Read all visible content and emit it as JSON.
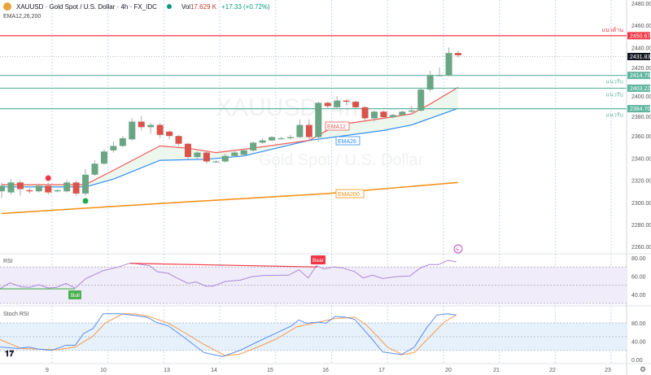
{
  "header": {
    "symbol": "XAUUSD · Gold Spot / U.S. Dollar · 4h · FX_IDC",
    "vol_label": "Vol",
    "vol": "17.629 K",
    "change": "+17.33 (+0.72%)",
    "indicators": "EMA12,26,200"
  },
  "watermark": {
    "line1": "XAUUSD, 4h",
    "line2": "Gold Spot / U.S. Dollar"
  },
  "colors": {
    "up": "#6aa584",
    "down": "#d9534a",
    "ema12": "#f05a5a",
    "ema26": "#2f8cf0",
    "ema200": "#f7931a",
    "resistance": "#f23645",
    "support": "#5fb5a0",
    "rsi": "#a989d8",
    "stochK": "#5b8def",
    "stochD": "#f79a4a"
  },
  "price_axis": {
    "ticks": [
      "2480.00",
      "2460.00",
      "2440.00",
      "2420.00",
      "2400.00",
      "2380.00",
      "2360.00",
      "2340.00",
      "2320.00",
      "2300.00",
      "2280.00",
      "2260.00"
    ],
    "tick_values": [
      2480,
      2460,
      2440,
      2420,
      2400,
      2380,
      2360,
      2340,
      2320,
      2300,
      2280,
      2260
    ]
  },
  "levels": [
    {
      "label": "แนวต้าน",
      "value": 2450.67,
      "price": "2450.67",
      "type": "resistance"
    },
    {
      "label": "แนวรับ",
      "value": 2414.79,
      "price": "2414.79",
      "type": "support"
    },
    {
      "label": "แนวรับ",
      "value": 2403.22,
      "price": "2403.22",
      "type": "support"
    },
    {
      "label": "แนวรับ",
      "value": 2384.7,
      "price": "2384.70",
      "type": "support"
    }
  ],
  "current_price": {
    "value": 2431.83,
    "label": "2431.83"
  },
  "ema_labels": {
    "ema12": "EMA12",
    "ema26": "EMA26",
    "ema200": "EMA200"
  },
  "time_axis": [
    "9",
    "10",
    "13",
    "14",
    "15",
    "16",
    "17",
    "20",
    "21",
    "22",
    "23"
  ],
  "candles": [
    [
      2310,
      2315,
      2318,
      2304
    ],
    [
      2309,
      2318,
      2321,
      2307
    ],
    [
      2318,
      2312,
      2320,
      2306
    ],
    [
      2311,
      2310,
      2313,
      2308
    ],
    [
      2310,
      2315,
      2317,
      2309
    ],
    [
      2315,
      2309,
      2318,
      2307
    ],
    [
      2310,
      2311,
      2312,
      2309
    ],
    [
      2310,
      2318,
      2320,
      2309
    ],
    [
      2318,
      2308,
      2320,
      2306
    ],
    [
      2308,
      2325,
      2330,
      2306
    ],
    [
      2325,
      2335,
      2338,
      2324
    ],
    [
      2335,
      2346,
      2348,
      2334
    ],
    [
      2347,
      2351,
      2355,
      2345
    ],
    [
      2351,
      2358,
      2360,
      2350
    ],
    [
      2357,
      2373,
      2376,
      2356
    ],
    [
      2373,
      2368,
      2378,
      2365
    ],
    [
      2368,
      2370,
      2372,
      2362
    ],
    [
      2370,
      2361,
      2372,
      2358
    ],
    [
      2364,
      2360,
      2365,
      2357
    ],
    [
      2360,
      2353,
      2361,
      2351
    ],
    [
      2353,
      2341,
      2354,
      2339
    ],
    [
      2341,
      2345,
      2346,
      2339
    ],
    [
      2345,
      2337,
      2346,
      2335
    ],
    [
      2337,
      2337,
      2338,
      2336
    ],
    [
      2337,
      2342,
      2344,
      2336
    ],
    [
      2342,
      2345,
      2347,
      2341
    ],
    [
      2343,
      2347,
      2348,
      2342
    ],
    [
      2347,
      2354,
      2355,
      2346
    ],
    [
      2354,
      2356,
      2358,
      2353
    ],
    [
      2356,
      2359,
      2360,
      2355
    ],
    [
      2358,
      2358,
      2359,
      2357
    ],
    [
      2358,
      2359,
      2361,
      2357
    ],
    [
      2359,
      2370,
      2375,
      2358
    ],
    [
      2370,
      2359,
      2375,
      2355
    ],
    [
      2359,
      2390,
      2391,
      2355
    ],
    [
      2390,
      2387,
      2391,
      2385
    ],
    [
      2386,
      2392,
      2396,
      2385
    ],
    [
      2392,
      2391,
      2393,
      2388
    ],
    [
      2391,
      2386,
      2392,
      2385
    ],
    [
      2386,
      2376,
      2387,
      2374
    ],
    [
      2376,
      2382,
      2383,
      2373
    ],
    [
      2382,
      2377,
      2383,
      2376
    ],
    [
      2377,
      2379,
      2380,
      2376
    ],
    [
      2379,
      2382,
      2383,
      2378
    ],
    [
      2382,
      2383,
      2387,
      2381
    ],
    [
      2383,
      2402,
      2403,
      2382
    ],
    [
      2402,
      2415,
      2419,
      2400
    ],
    [
      2415,
      2415,
      2422,
      2414
    ],
    [
      2415,
      2435,
      2440,
      2414
    ],
    [
      2435,
      2433,
      2437,
      2431
    ]
  ],
  "ema12": [
    [
      0,
      2316
    ],
    [
      9,
      2316
    ],
    [
      12,
      2329
    ],
    [
      17,
      2351
    ],
    [
      20,
      2349
    ],
    [
      23,
      2345
    ],
    [
      26,
      2348
    ],
    [
      33,
      2356
    ],
    [
      36,
      2370
    ],
    [
      41,
      2376
    ],
    [
      44,
      2380
    ],
    [
      46,
      2389
    ],
    [
      49,
      2404
    ]
  ],
  "ema26": [
    [
      0,
      2314
    ],
    [
      9,
      2314
    ],
    [
      12,
      2321
    ],
    [
      17,
      2338
    ],
    [
      22,
      2339
    ],
    [
      26,
      2342
    ],
    [
      33,
      2356
    ],
    [
      41,
      2365
    ],
    [
      44,
      2370
    ],
    [
      49,
      2385
    ]
  ],
  "ema200": [
    [
      0,
      2290
    ],
    [
      17,
      2299
    ],
    [
      35,
      2308
    ],
    [
      49,
      2318
    ]
  ],
  "signals": {
    "sell_dot_bar": 5,
    "buy_dot_bar": 9
  },
  "rsi": {
    "title": "RSI",
    "ticks": [
      "80.00",
      "60.00",
      "40.00"
    ],
    "bull_label": "Bull",
    "bear_label": "Bear",
    "points": [
      [
        -0.2,
        46.1
      ],
      [
        0.9,
        52.6
      ],
      [
        2.1,
        48.2
      ],
      [
        3,
        47.6
      ],
      [
        4,
        50.5
      ],
      [
        5,
        47
      ],
      [
        5.9,
        47.6
      ],
      [
        6.9,
        52
      ],
      [
        7.9,
        46.7
      ],
      [
        9,
        57.1
      ],
      [
        10.9,
        66
      ],
      [
        12.5,
        69.9
      ],
      [
        13.8,
        74.3
      ],
      [
        15.9,
        71.4
      ],
      [
        16.7,
        64.8
      ],
      [
        17.9,
        63
      ],
      [
        18.8,
        58
      ],
      [
        20,
        52
      ],
      [
        20.9,
        53.5
      ],
      [
        21.9,
        49
      ],
      [
        22.7,
        49
      ],
      [
        24,
        54.1
      ],
      [
        25.6,
        55.6
      ],
      [
        26.9,
        59.5
      ],
      [
        28.2,
        60.7
      ],
      [
        30.8,
        61
      ],
      [
        31.9,
        66.9
      ],
      [
        32.9,
        58
      ],
      [
        33.8,
        71.4
      ],
      [
        34.6,
        67.8
      ],
      [
        35.6,
        69.9
      ],
      [
        36.6,
        69
      ],
      [
        37.9,
        64.8
      ],
      [
        38.8,
        58
      ],
      [
        39.8,
        61
      ],
      [
        40.9,
        57.4
      ],
      [
        42.4,
        59.5
      ],
      [
        43.8,
        60.1
      ],
      [
        45,
        69.3
      ],
      [
        45.9,
        72.6
      ],
      [
        46.9,
        72.6
      ],
      [
        47.9,
        77.3
      ],
      [
        48.8,
        75.5
      ]
    ]
  },
  "stoch": {
    "title": "Stoch RSI",
    "ticks": [
      "80.00",
      "40.00",
      "0.00"
    ],
    "k": [
      [
        -0.2,
        27.3
      ],
      [
        1.7,
        24.3
      ],
      [
        2.9,
        27.3
      ],
      [
        4,
        22.6
      ],
      [
        5.4,
        20.2
      ],
      [
        6.9,
        31.4
      ],
      [
        7.9,
        31.4
      ],
      [
        8.8,
        56.9
      ],
      [
        9.8,
        67.6
      ],
      [
        10.9,
        100
      ],
      [
        12.7,
        100
      ],
      [
        14,
        97.2
      ],
      [
        15.6,
        92.5
      ],
      [
        16.7,
        80.6
      ],
      [
        17.9,
        73.5
      ],
      [
        19.8,
        45.1
      ],
      [
        21.7,
        15.4
      ],
      [
        23.7,
        6.5
      ],
      [
        25.6,
        20.2
      ],
      [
        27.5,
        39.1
      ],
      [
        29.5,
        58.1
      ],
      [
        31.1,
        73.5
      ],
      [
        31.9,
        86.6
      ],
      [
        32.7,
        79.4
      ],
      [
        34,
        81.8
      ],
      [
        34.8,
        79.4
      ],
      [
        35.8,
        94.3
      ],
      [
        36.9,
        92.5
      ],
      [
        37.9,
        87.7
      ],
      [
        39.5,
        51
      ],
      [
        40.9,
        16.6
      ],
      [
        42.9,
        10.7
      ],
      [
        44.3,
        27.3
      ],
      [
        45.6,
        68.8
      ],
      [
        46.7,
        97.2
      ],
      [
        47.9,
        100
      ],
      [
        48.8,
        97.2
      ]
    ],
    "d": [
      [
        -0.2,
        43.9
      ],
      [
        2.1,
        24.3
      ],
      [
        4,
        22.6
      ],
      [
        5.9,
        21.4
      ],
      [
        7.9,
        27.3
      ],
      [
        9.8,
        51
      ],
      [
        11.1,
        79.4
      ],
      [
        13,
        100
      ],
      [
        14.3,
        99.6
      ],
      [
        15.6,
        95.4
      ],
      [
        17.9,
        79.4
      ],
      [
        19.8,
        56.9
      ],
      [
        21.7,
        33.2
      ],
      [
        24,
        8.3
      ],
      [
        25.6,
        11.9
      ],
      [
        27.5,
        27.3
      ],
      [
        29.5,
        45.1
      ],
      [
        31.7,
        71.8
      ],
      [
        34,
        81.8
      ],
      [
        35.9,
        90.1
      ],
      [
        37.9,
        92.5
      ],
      [
        39.2,
        74.7
      ],
      [
        41.4,
        27.3
      ],
      [
        43,
        10.7
      ],
      [
        44.3,
        15.4
      ],
      [
        46.3,
        56.9
      ],
      [
        47.5,
        81.8
      ],
      [
        48.8,
        97.2
      ]
    ]
  }
}
